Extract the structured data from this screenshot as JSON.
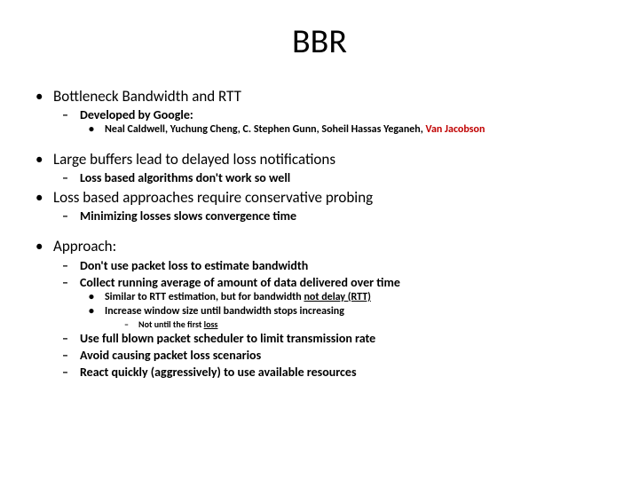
{
  "title": "BBR",
  "colors": {
    "text": "#000000",
    "background": "#ffffff",
    "accent_red": "#c00000"
  },
  "typography": {
    "title_fontsize": 38,
    "level1_fontsize": 17,
    "level2_fontsize": 14,
    "level3_fontsize": 12,
    "level4_fontsize": 10,
    "font_family": "Calibri"
  },
  "items": {
    "b1": "Bottleneck Bandwidth and RTT",
    "b1_1": "Developed by Google:",
    "b1_1_1_prefix": "Neal Caldwell, Yuchung Cheng, C. Stephen Gunn, Soheil Hassas Yeganeh, ",
    "b1_1_1_red": "Van Jacobson",
    "b2": "Large buffers lead to delayed loss notifications",
    "b2_1": "Loss based algorithms don't work so well",
    "b3": "Loss based approaches require conservative probing",
    "b3_1": "Minimizing losses slows convergence time",
    "b4": "Approach:",
    "b4_1": "Don't use packet loss to estimate bandwidth",
    "b4_2": "Collect running average of amount of data delivered over time",
    "b4_2_1_prefix": "Similar to RTT estimation, but for bandwidth ",
    "b4_2_1_ul": "not delay (RTT)",
    "b4_2_2": "Increase window size until bandwidth stops increasing",
    "b4_2_2_1_prefix": "Not until the first ",
    "b4_2_2_1_ul": "loss",
    "b4_3": "Use full blown packet scheduler to limit transmission rate",
    "b4_4": "Avoid causing packet loss scenarios",
    "b4_5": "React quickly (aggressively) to use available resources"
  }
}
